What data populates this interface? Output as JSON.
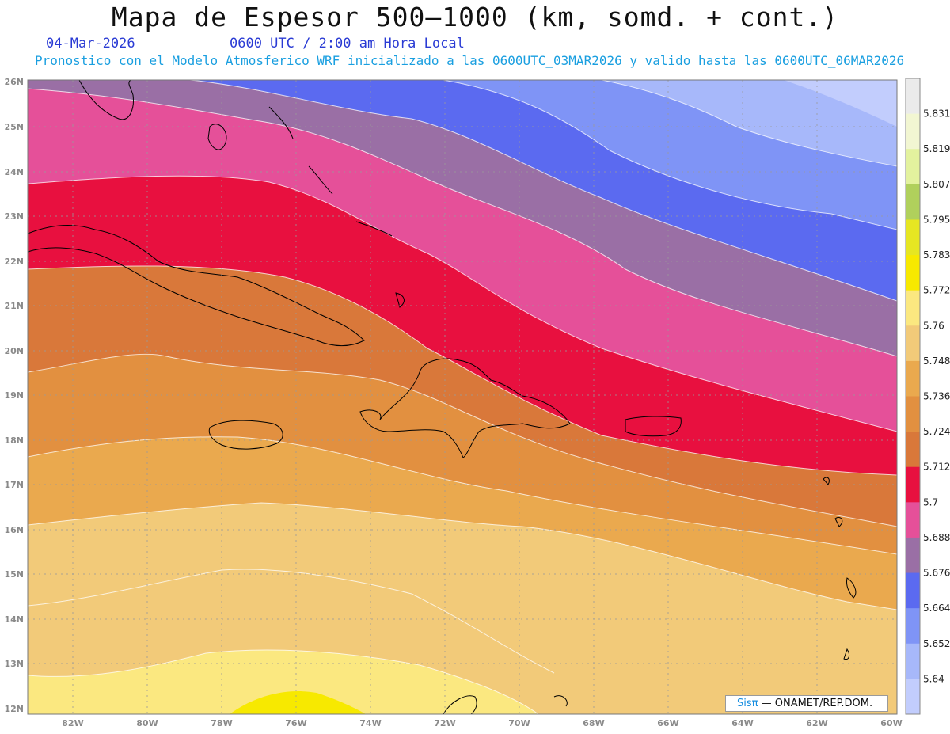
{
  "title": "Mapa de Espesor 500—1000 (km, somd. + cont.)",
  "subtitle": {
    "date": "04-Mar-2026",
    "time": "0600 UTC / 2:00 am Hora Local",
    "model": "Pronostico con el Modelo Atmosferico WRF inicializado a las 0600UTC_03MAR2026 y valido hasta las  0600UTC_06MAR2026"
  },
  "map": {
    "lat_labels": [
      "26N",
      "25N",
      "24N",
      "23N",
      "22N",
      "21N",
      "20N",
      "19N",
      "18N",
      "17N",
      "16N",
      "15N",
      "14N",
      "13N",
      "12N"
    ],
    "lon_labels": [
      "82W",
      "80W",
      "78W",
      "76W",
      "74W",
      "72W",
      "70W",
      "68W",
      "66W",
      "64W",
      "62W",
      "60W"
    ]
  },
  "colorbar": {
    "labels": [
      "5.831",
      "5.819",
      "5.807",
      "5.795",
      "5.783",
      "5.772",
      "5.76",
      "5.748",
      "5.736",
      "5.724",
      "5.712",
      "5.7",
      "5.688",
      "5.676",
      "5.664",
      "5.652",
      "5.64"
    ],
    "colors": [
      "#ebebeb",
      "#f2f6d2",
      "#e3f29e",
      "#b0d05c",
      "#e6e622",
      "#f7e900",
      "#fbe880",
      "#f2ca79",
      "#eaa94e",
      "#e29040",
      "#d9783a",
      "#e8103f",
      "#e55099",
      "#9a6fa5",
      "#5b6af0",
      "#7f94f6",
      "#a7b8fa",
      "#c2cdfd"
    ]
  },
  "contour_levels": [
    {
      "value": "5.676",
      "color": "#5b6af0"
    },
    {
      "value": "5.664",
      "color": "#7f94f6"
    },
    {
      "value": "5.652",
      "color": "#a7b8fa"
    },
    {
      "value": "5.640",
      "color": "#c2cdfd"
    }
  ],
  "credit": {
    "logo": "Sisπ ",
    "org": "— ONAMET/REP.DOM."
  }
}
